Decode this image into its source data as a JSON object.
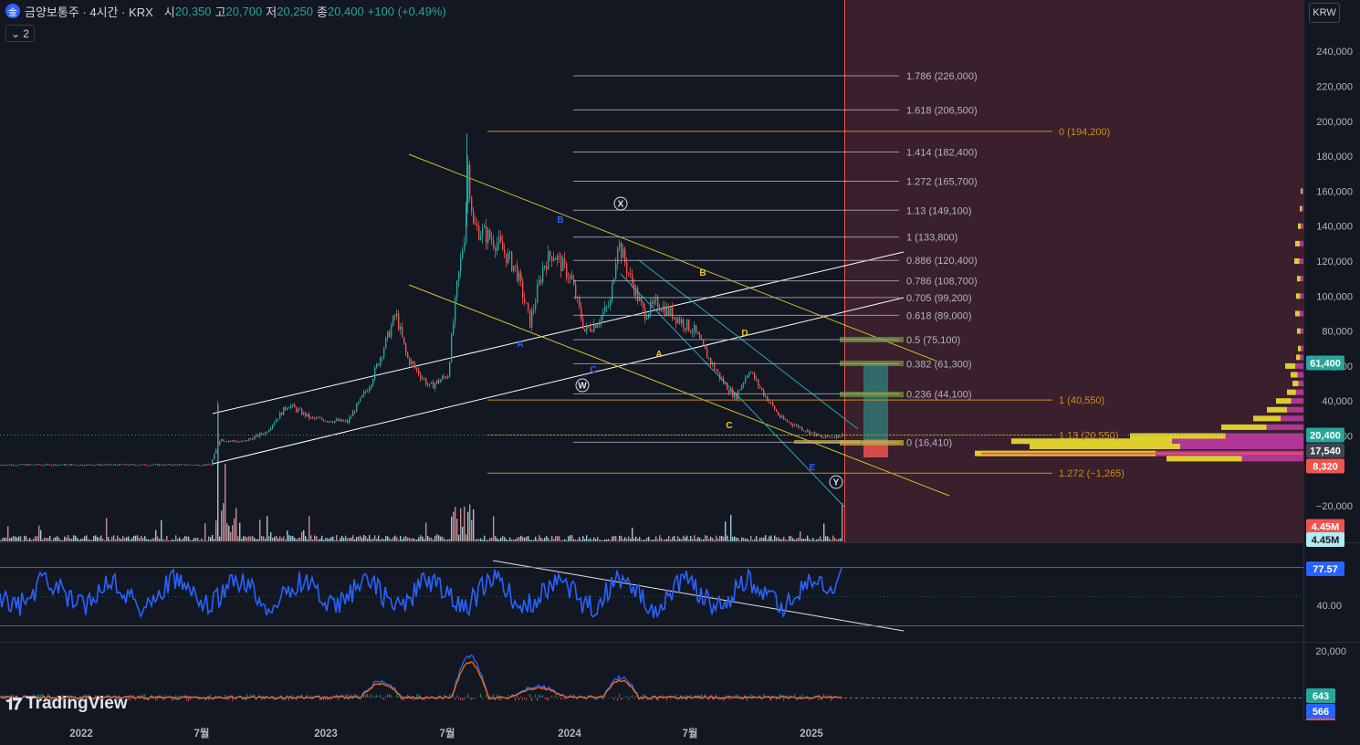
{
  "header": {
    "symbol": "금양보통주 · 4시간 · KRX",
    "open_label": "시",
    "open": "20,350",
    "high_label": "고",
    "high": "20,700",
    "low_label": "저",
    "low": "20,250",
    "close_label": "종",
    "close": "20,400",
    "change": "+100 (+0.49%)",
    "collapse_label": "2"
  },
  "currency_button": "KRW",
  "brand": "TradingView",
  "colors": {
    "background": "#131722",
    "up": "#26a69a",
    "down": "#ef5350",
    "fib_retracement": "#b2b5be",
    "fib_extension": "#c98c1e",
    "channel_white": "#ffffff",
    "channel_yellow": "#d4c12a",
    "channel_cyan": "#29a3b8",
    "rsi_line": "#2962ff",
    "future_zone": "#3a1f2c"
  },
  "price_axis": [
    "240,000",
    "220,000",
    "200,000",
    "180,000",
    "160,000",
    "140,000",
    "120,000",
    "100,000",
    "80,000",
    "60,000",
    "40,000",
    "20,000",
    "−20,000"
  ],
  "price_badges": [
    {
      "text": "61,400",
      "color": "#26a69a"
    },
    {
      "text": "20,400",
      "color": "#26a69a"
    },
    {
      "text": "17,540",
      "color": "#434651"
    },
    {
      "text": "8,320",
      "color": "#ef5350"
    },
    {
      "text": "4.45M",
      "color": "#ef5350"
    },
    {
      "text": "4.45M",
      "color": "#b2ebf2"
    }
  ],
  "rsi_axis": [
    "40.00"
  ],
  "rsi_badge": "77.57",
  "macd_axis": [
    "20,000"
  ],
  "macd_badges": [
    {
      "text": "643",
      "color": "#26a69a"
    },
    {
      "text": "566",
      "color": "#2962ff"
    }
  ],
  "time_axis": [
    "2022",
    "7월",
    "2023",
    "7월",
    "2024",
    "7월",
    "2025"
  ],
  "fib_levels": [
    {
      "label": "1.786 (226,000)",
      "price": 226000
    },
    {
      "label": "1.618 (206,500)",
      "price": 206500
    },
    {
      "label": "1.414 (182,400)",
      "price": 182400
    },
    {
      "label": "1.272 (165,700)",
      "price": 165700
    },
    {
      "label": "1.13 (149,100)",
      "price": 149100
    },
    {
      "label": "1 (133,800)",
      "price": 133800
    },
    {
      "label": "0.886 (120,400)",
      "price": 120400
    },
    {
      "label": "0.786 (108,700)",
      "price": 108700
    },
    {
      "label": "0.705 (99,200)",
      "price": 99200
    },
    {
      "label": "0.618 (89,000)",
      "price": 89000
    },
    {
      "label": "0.5 (75,100)",
      "price": 75100
    },
    {
      "label": "0.382 (61,300)",
      "price": 61300
    },
    {
      "label": "0.236 (44,100)",
      "price": 44100
    },
    {
      "label": "0 (16,410)",
      "price": 16410
    }
  ],
  "fib_ext_levels": [
    {
      "label": "0 (194,200)",
      "price": 194200
    },
    {
      "label": "1 (40,550)",
      "price": 40550
    },
    {
      "label": "1.13 (20,550)",
      "price": 20550
    },
    {
      "label": "1.272 (−1,265)",
      "price": -1265
    }
  ],
  "wave_labels": [
    {
      "text": "X",
      "circled": true
    },
    {
      "text": "W",
      "circled": true
    },
    {
      "text": "Y",
      "circled": true
    },
    {
      "text": "A",
      "color": "#2962ff"
    },
    {
      "text": "B",
      "color": "#2962ff"
    },
    {
      "text": "C",
      "color": "#2962ff"
    },
    {
      "text": "A",
      "color": "#f0c61a"
    },
    {
      "text": "B",
      "color": "#f0c61a"
    },
    {
      "text": "C",
      "color": "#f0c61a"
    },
    {
      "text": "D",
      "color": "#f0c61a"
    },
    {
      "text": "E",
      "color": "#2962ff"
    }
  ]
}
